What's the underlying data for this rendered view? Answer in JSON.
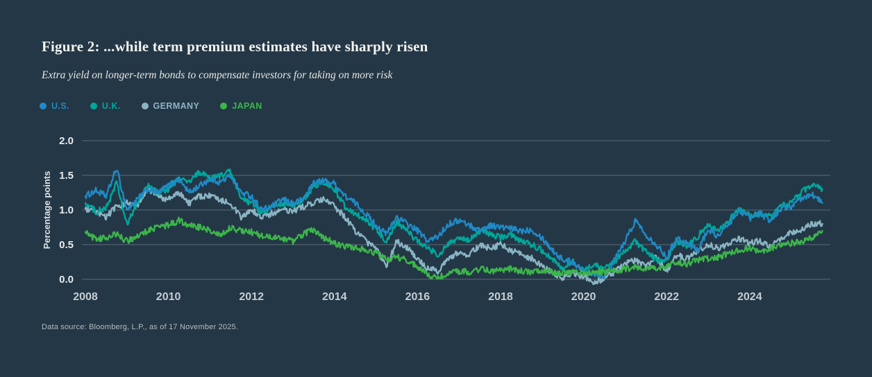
{
  "header": {
    "title": "Figure 2: ...while term premium estimates have sharply risen",
    "subtitle": "Extra yield on longer-term bonds to compensate investors for taking on more risk"
  },
  "footer": {
    "source": "Data source: Bloomberg, L.P., as of 17 November 2025."
  },
  "colors": {
    "background": "#243746",
    "grid": "#8d99a2",
    "y_tick_text": "#e8ecee",
    "x_tick_text": "#c6cdd2",
    "axis_title_text": "#dde2e5"
  },
  "chart_data": {
    "type": "line",
    "title": "Figure 2: ...while term premium estimates have sharply risen",
    "subtitle": "Extra yield on longer-term bonds to compensate investors for taking on more risk",
    "xlabel": "",
    "ylabel": "Percentage points",
    "xlim": [
      2008,
      2026
    ],
    "ylim": [
      0,
      2.0
    ],
    "xticks": [
      2008,
      2010,
      2012,
      2014,
      2016,
      2018,
      2020,
      2022,
      2024
    ],
    "yticks": [
      0.0,
      0.5,
      1.0,
      1.5,
      2.0
    ],
    "grid": true,
    "legend_position": "top-left",
    "x": {
      "start": 2008,
      "step": 0.25,
      "unit": "year"
    },
    "series": [
      {
        "label": "U.S.",
        "color": "#1f8ac6",
        "values": [
          1.2,
          1.28,
          1.2,
          1.6,
          1.0,
          1.15,
          1.3,
          1.25,
          1.35,
          1.45,
          1.25,
          1.35,
          1.45,
          1.4,
          1.5,
          1.25,
          1.2,
          1.0,
          1.05,
          1.15,
          1.1,
          1.15,
          1.4,
          1.42,
          1.38,
          1.2,
          1.1,
          0.95,
          0.78,
          0.65,
          0.9,
          0.8,
          0.7,
          0.55,
          0.62,
          0.8,
          0.85,
          0.78,
          0.7,
          0.78,
          0.75,
          0.73,
          0.7,
          0.72,
          0.6,
          0.42,
          0.28,
          0.25,
          0.12,
          0.08,
          0.05,
          0.28,
          0.55,
          0.85,
          0.65,
          0.5,
          0.32,
          0.6,
          0.52,
          0.42,
          0.72,
          0.62,
          0.8,
          1.0,
          0.88,
          0.95,
          0.85,
          1.02,
          1.05,
          1.15,
          1.23,
          1.1
        ]
      },
      {
        "label": "U.K.",
        "color": "#00a79b",
        "values": [
          1.1,
          0.98,
          1.02,
          1.4,
          0.78,
          1.1,
          1.35,
          1.25,
          1.3,
          1.45,
          1.4,
          1.55,
          1.45,
          1.5,
          1.55,
          1.15,
          1.1,
          0.95,
          1.05,
          1.1,
          1.05,
          1.15,
          1.35,
          1.4,
          1.3,
          1.05,
          0.95,
          0.85,
          0.72,
          0.55,
          0.83,
          0.7,
          0.55,
          0.45,
          0.35,
          0.5,
          0.6,
          0.55,
          0.72,
          0.65,
          0.6,
          0.65,
          0.55,
          0.5,
          0.42,
          0.3,
          0.15,
          0.25,
          0.12,
          0.22,
          0.15,
          0.25,
          0.4,
          0.55,
          0.4,
          0.28,
          0.28,
          0.55,
          0.48,
          0.62,
          0.8,
          0.7,
          0.85,
          1.0,
          0.92,
          0.95,
          0.9,
          1.05,
          1.1,
          1.25,
          1.38,
          1.3
        ]
      },
      {
        "label": "GERMANY",
        "color": "#8ab4c4",
        "values": [
          1.02,
          0.95,
          0.9,
          1.05,
          1.1,
          1.05,
          1.3,
          1.2,
          1.15,
          1.25,
          1.1,
          1.2,
          1.2,
          1.15,
          1.1,
          0.88,
          1.0,
          0.9,
          0.95,
          1.0,
          0.98,
          1.05,
          1.1,
          1.15,
          1.05,
          0.9,
          0.7,
          0.55,
          0.45,
          0.18,
          0.55,
          0.45,
          0.3,
          0.15,
          0.12,
          0.3,
          0.4,
          0.35,
          0.5,
          0.45,
          0.5,
          0.42,
          0.35,
          0.3,
          0.18,
          0.1,
          0.02,
          0.08,
          0.05,
          -0.05,
          0.02,
          0.1,
          0.22,
          0.28,
          0.18,
          0.32,
          0.12,
          0.35,
          0.3,
          0.4,
          0.5,
          0.45,
          0.52,
          0.58,
          0.52,
          0.55,
          0.48,
          0.6,
          0.68,
          0.72,
          0.8,
          0.8
        ]
      },
      {
        "label": "JAPAN",
        "color": "#3cb54a",
        "values": [
          0.68,
          0.58,
          0.6,
          0.65,
          0.55,
          0.62,
          0.7,
          0.75,
          0.78,
          0.85,
          0.78,
          0.75,
          0.7,
          0.65,
          0.75,
          0.7,
          0.68,
          0.62,
          0.6,
          0.58,
          0.55,
          0.65,
          0.72,
          0.6,
          0.52,
          0.48,
          0.45,
          0.42,
          0.38,
          0.28,
          0.32,
          0.28,
          0.18,
          0.05,
          0.02,
          0.1,
          0.12,
          0.1,
          0.15,
          0.12,
          0.12,
          0.15,
          0.12,
          0.1,
          0.12,
          0.1,
          0.08,
          0.1,
          0.08,
          0.12,
          0.1,
          0.12,
          0.15,
          0.18,
          0.15,
          0.16,
          0.18,
          0.25,
          0.22,
          0.28,
          0.3,
          0.32,
          0.38,
          0.42,
          0.45,
          0.4,
          0.45,
          0.48,
          0.52,
          0.55,
          0.6,
          0.7
        ]
      }
    ]
  }
}
